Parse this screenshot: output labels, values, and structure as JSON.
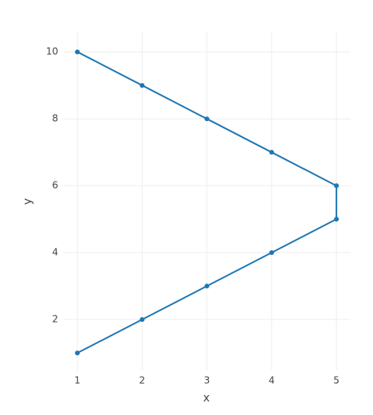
{
  "chart_data": {
    "type": "line",
    "x_label": "x",
    "y_label": "y",
    "x": [
      1,
      2,
      3,
      4,
      5,
      5,
      4,
      3,
      2,
      1
    ],
    "series": [
      {
        "color": "#1f77b4",
        "values": [
          10,
          9,
          8,
          7,
          6,
          5,
          4,
          3,
          2,
          1
        ]
      }
    ],
    "xlim": [
      0.79,
      5.22
    ],
    "ylim": [
      0.48,
      10.6
    ],
    "xticks": [
      1,
      2,
      3,
      4,
      5
    ],
    "yticks": [
      2,
      4,
      6,
      8,
      10
    ],
    "grid": true
  }
}
